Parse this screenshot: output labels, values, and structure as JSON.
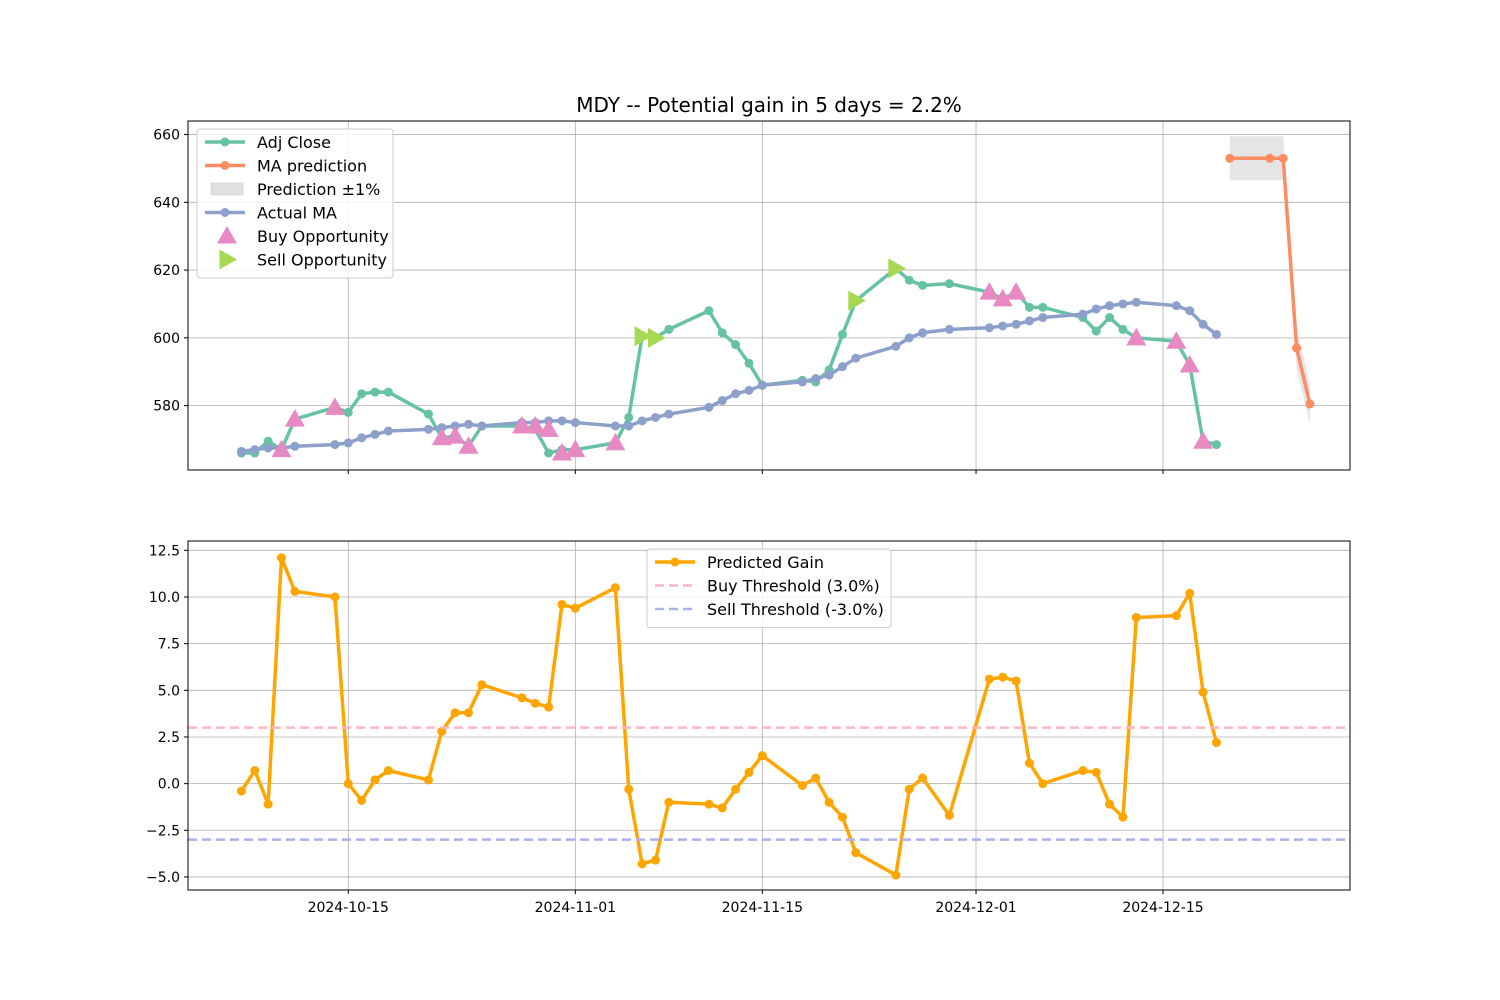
{
  "chart_data": [
    {
      "type": "line",
      "title": "MDY -- Potential gain in 5 days = 2.2%",
      "xlabel": "",
      "ylabel": "",
      "ylim": [
        561,
        664
      ],
      "yticks": [
        580,
        600,
        620,
        640,
        660
      ],
      "xlim": [
        "2024-10-03",
        "2024-12-29"
      ],
      "xticks": [
        "2024-10-15",
        "2024-11-01",
        "2024-11-15",
        "2024-12-01",
        "2024-12-15"
      ],
      "xticks_labeled": false,
      "grid": true,
      "legend_position": "upper-left",
      "series": [
        {
          "name": "Adj Close",
          "color": "#66c2a5",
          "kind": "line-marker",
          "x": [
            "2024-10-07",
            "2024-10-08",
            "2024-10-09",
            "2024-10-10",
            "2024-10-11",
            "2024-10-14",
            "2024-10-15",
            "2024-10-16",
            "2024-10-17",
            "2024-10-18",
            "2024-10-21",
            "2024-10-22",
            "2024-10-23",
            "2024-10-24",
            "2024-10-25",
            "2024-10-28",
            "2024-10-29",
            "2024-10-30",
            "2024-10-31",
            "2024-11-01",
            "2024-11-04",
            "2024-11-05",
            "2024-11-06",
            "2024-11-07",
            "2024-11-08",
            "2024-11-11",
            "2024-11-12",
            "2024-11-13",
            "2024-11-14",
            "2024-11-15",
            "2024-11-18",
            "2024-11-19",
            "2024-11-20",
            "2024-11-21",
            "2024-11-22",
            "2024-11-25",
            "2024-11-26",
            "2024-11-27",
            "2024-11-29",
            "2024-12-02",
            "2024-12-03",
            "2024-12-04",
            "2024-12-05",
            "2024-12-06",
            "2024-12-09",
            "2024-12-10",
            "2024-12-11",
            "2024-12-12",
            "2024-12-13",
            "2024-12-16",
            "2024-12-17",
            "2024-12-18",
            "2024-12-19"
          ],
          "values": [
            566,
            566,
            569.5,
            567,
            576,
            579.5,
            578,
            583.5,
            584,
            584,
            577.5,
            570.5,
            571,
            568,
            574,
            574,
            573,
            566,
            567,
            567,
            569,
            576.5,
            600.5,
            600,
            602.5,
            608,
            601.5,
            598,
            592.5,
            586,
            587.5,
            587,
            590.5,
            601,
            611,
            620.5,
            617,
            615.5,
            616,
            613.5,
            611.5,
            613.5,
            609,
            609,
            606,
            602,
            606,
            602.5,
            600,
            599,
            592,
            569.5,
            568.5
          ]
        },
        {
          "name": "MA prediction",
          "color": "#fc8d62",
          "kind": "line-marker",
          "x": [
            "2024-12-20",
            "2024-12-23",
            "2024-12-24",
            "2024-12-25",
            "2024-12-26"
          ],
          "values": [
            653,
            653,
            653,
            597,
            580.5
          ]
        },
        {
          "name": "Prediction ±1%",
          "color": "#e0e0e0",
          "kind": "band",
          "x": [
            "2024-12-20",
            "2024-12-23",
            "2024-12-24",
            "2024-12-25",
            "2024-12-26"
          ],
          "lower": [
            646.5,
            646.5,
            646.5,
            591,
            574.5
          ],
          "upper": [
            659.5,
            659.5,
            659.5,
            603,
            586.5
          ]
        },
        {
          "name": "Actual MA",
          "color": "#8da0cb",
          "kind": "line-marker",
          "x": [
            "2024-10-07",
            "2024-10-08",
            "2024-10-09",
            "2024-10-10",
            "2024-10-11",
            "2024-10-14",
            "2024-10-15",
            "2024-10-16",
            "2024-10-17",
            "2024-10-18",
            "2024-10-21",
            "2024-10-22",
            "2024-10-23",
            "2024-10-24",
            "2024-10-25",
            "2024-10-28",
            "2024-10-29",
            "2024-10-30",
            "2024-10-31",
            "2024-11-01",
            "2024-11-04",
            "2024-11-05",
            "2024-11-06",
            "2024-11-07",
            "2024-11-08",
            "2024-11-11",
            "2024-11-12",
            "2024-11-13",
            "2024-11-14",
            "2024-11-15",
            "2024-11-18",
            "2024-11-19",
            "2024-11-20",
            "2024-11-21",
            "2024-11-22",
            "2024-11-25",
            "2024-11-26",
            "2024-11-27",
            "2024-11-29",
            "2024-12-02",
            "2024-12-03",
            "2024-12-04",
            "2024-12-05",
            "2024-12-06",
            "2024-12-09",
            "2024-12-10",
            "2024-12-11",
            "2024-12-12",
            "2024-12-13",
            "2024-12-16",
            "2024-12-17",
            "2024-12-18",
            "2024-12-19"
          ],
          "values": [
            566.5,
            567,
            567.5,
            567.5,
            568,
            568.5,
            569,
            570.5,
            571.5,
            572.5,
            573,
            573.5,
            574,
            574.5,
            574,
            575,
            575,
            575.5,
            575.5,
            575,
            574,
            574,
            575.5,
            576.5,
            577.5,
            579.5,
            581.5,
            583.5,
            584.5,
            586,
            587,
            588,
            589,
            591.5,
            594,
            597.5,
            600,
            601.5,
            602.5,
            603,
            603.5,
            604,
            605,
            606,
            607,
            608.5,
            609.5,
            610,
            610.5,
            609.5,
            608,
            604,
            601
          ]
        },
        {
          "name": "Buy Opportunity",
          "color": "#e78ac3",
          "kind": "marker-triangle-up",
          "x": [
            "2024-10-10",
            "2024-10-11",
            "2024-10-14",
            "2024-10-22",
            "2024-10-23",
            "2024-10-24",
            "2024-10-28",
            "2024-10-29",
            "2024-10-30",
            "2024-10-31",
            "2024-11-01",
            "2024-11-04",
            "2024-12-02",
            "2024-12-03",
            "2024-12-04",
            "2024-12-13",
            "2024-12-16",
            "2024-12-17",
            "2024-12-18"
          ],
          "values": [
            567,
            576,
            579.5,
            570.5,
            571,
            568,
            574,
            574,
            573,
            566,
            567,
            569,
            613.5,
            611.5,
            613.5,
            600,
            599,
            592,
            569.5
          ]
        },
        {
          "name": "Sell Opportunity",
          "color": "#a6d854",
          "kind": "marker-triangle-right",
          "x": [
            "2024-11-06",
            "2024-11-07",
            "2024-11-22",
            "2024-11-25"
          ],
          "values": [
            600.5,
            600,
            611,
            620.5
          ]
        }
      ]
    },
    {
      "type": "line",
      "title": "",
      "xlabel": "",
      "ylabel": "",
      "ylim": [
        -5.7,
        13.0
      ],
      "yticks": [
        -5.0,
        -2.5,
        0.0,
        2.5,
        5.0,
        7.5,
        10.0,
        12.5
      ],
      "ytick_labels": [
        "−5.0",
        "−2.5",
        "0.0",
        "2.5",
        "5.0",
        "7.5",
        "10.0",
        "12.5"
      ],
      "xlim": [
        "2024-10-03",
        "2024-12-29"
      ],
      "xticks": [
        "2024-10-15",
        "2024-11-01",
        "2024-11-15",
        "2024-12-01",
        "2024-12-15"
      ],
      "grid": true,
      "legend_position": "upper-center",
      "series": [
        {
          "name": "Predicted Gain",
          "color": "#ffa500",
          "kind": "line-marker",
          "x": [
            "2024-10-07",
            "2024-10-08",
            "2024-10-09",
            "2024-10-10",
            "2024-10-11",
            "2024-10-14",
            "2024-10-15",
            "2024-10-16",
            "2024-10-17",
            "2024-10-18",
            "2024-10-21",
            "2024-10-22",
            "2024-10-23",
            "2024-10-24",
            "2024-10-25",
            "2024-10-28",
            "2024-10-29",
            "2024-10-30",
            "2024-10-31",
            "2024-11-01",
            "2024-11-04",
            "2024-11-05",
            "2024-11-06",
            "2024-11-07",
            "2024-11-08",
            "2024-11-11",
            "2024-11-12",
            "2024-11-13",
            "2024-11-14",
            "2024-11-15",
            "2024-11-18",
            "2024-11-19",
            "2024-11-20",
            "2024-11-21",
            "2024-11-22",
            "2024-11-25",
            "2024-11-26",
            "2024-11-27",
            "2024-11-29",
            "2024-12-02",
            "2024-12-03",
            "2024-12-04",
            "2024-12-05",
            "2024-12-06",
            "2024-12-09",
            "2024-12-10",
            "2024-12-11",
            "2024-12-12",
            "2024-12-13",
            "2024-12-16",
            "2024-12-17",
            "2024-12-18",
            "2024-12-19"
          ],
          "values": [
            -0.4,
            0.7,
            -1.1,
            12.1,
            10.3,
            10.0,
            0.0,
            -0.9,
            0.2,
            0.7,
            0.2,
            2.8,
            3.8,
            3.8,
            5.3,
            4.6,
            4.3,
            4.1,
            9.6,
            9.4,
            10.5,
            -0.3,
            -4.3,
            -4.1,
            -1.0,
            -1.1,
            -1.3,
            -0.3,
            0.6,
            1.5,
            -0.1,
            0.3,
            -1.0,
            -1.8,
            -3.7,
            -4.9,
            -0.3,
            0.3,
            -1.7,
            5.6,
            5.7,
            5.5,
            1.1,
            0.0,
            0.7,
            0.6,
            -1.1,
            -1.8,
            8.9,
            9.0,
            10.2,
            4.9,
            2.2
          ]
        },
        {
          "name": "Buy Threshold (3.0%)",
          "color": "#ffb6c1",
          "kind": "hline-dashed",
          "value": 3.0
        },
        {
          "name": "Sell Threshold (-3.0%)",
          "color": "#aab0f0",
          "kind": "hline-dashed",
          "value": -3.0
        }
      ]
    }
  ]
}
